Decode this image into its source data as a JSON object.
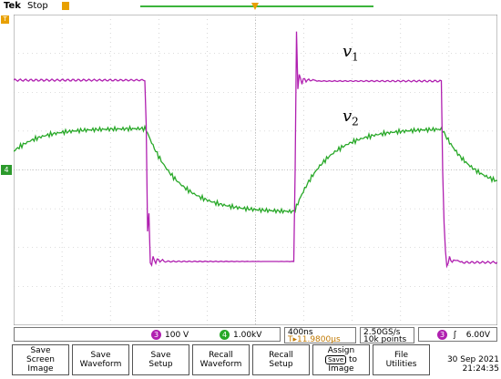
{
  "status": {
    "brand": "Tek",
    "run_state": "Stop"
  },
  "traces": {
    "v1": {
      "symbol": "v",
      "sub": "1",
      "color": "#b020b0"
    },
    "v2": {
      "symbol": "v",
      "sub": "2",
      "color": "#28a828"
    }
  },
  "readouts": {
    "ch_a": {
      "badge": "3",
      "value": "100 V",
      "color": "#b020b0"
    },
    "ch_b": {
      "badge": "4",
      "value": "1.00kV",
      "color": "#28a828"
    },
    "timebase": "400ns",
    "trigger_pos": "11.9800µs",
    "sample_rate": "2.50GS/s",
    "record_length": "10k points",
    "trigger": {
      "badge": "3",
      "slope": "ʃ",
      "level": "6.00V"
    }
  },
  "markers": {
    "ch1": "4",
    "trig": "T"
  },
  "softkeys": [
    {
      "line1": "Save",
      "line2": "Screen Image"
    },
    {
      "line1": "Save",
      "line2": "Waveform"
    },
    {
      "line1": "Save",
      "line2": "Setup"
    },
    {
      "line1": "Recall",
      "line2": "Waveform"
    },
    {
      "line1": "Recall",
      "line2": "Setup"
    },
    {
      "line1": "Assign",
      "chip": "Save",
      "line2": "to",
      "line3": "Image"
    },
    {
      "line1": "File",
      "line2": "Utilities"
    }
  ],
  "date": "30 Sep  2021",
  "time": "21:24:35"
}
